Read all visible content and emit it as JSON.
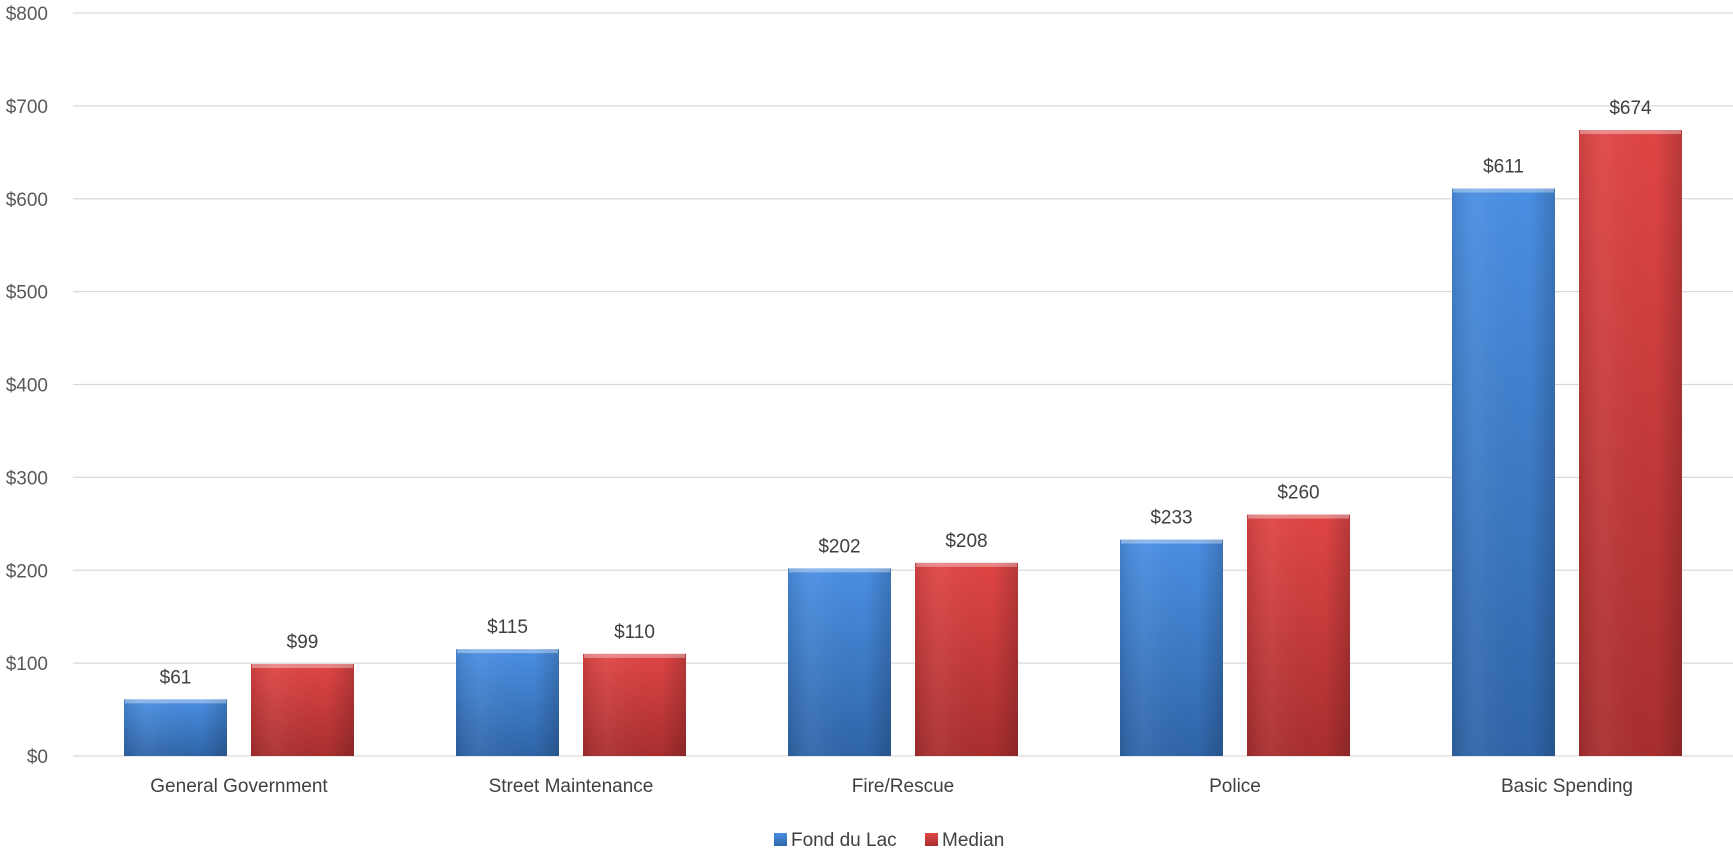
{
  "chart_data": {
    "type": "bar",
    "categories": [
      "General Government",
      "Street Maintenance",
      "Fire/Rescue",
      "Police",
      "Basic Spending"
    ],
    "series": [
      {
        "name": "Fond du Lac",
        "values": [
          61,
          115,
          202,
          233,
          611
        ],
        "labels": [
          "$61",
          "$115",
          "$202",
          "$233",
          "$611"
        ],
        "color": "#3a7fd5"
      },
      {
        "name": "Median",
        "values": [
          99,
          110,
          208,
          260,
          674
        ],
        "labels": [
          "$99",
          "$110",
          "$208",
          "$260",
          "$674"
        ],
        "color": "#d63c3c"
      }
    ],
    "ylim": [
      0,
      800
    ],
    "yticks": [
      0,
      100,
      200,
      300,
      400,
      500,
      600,
      700,
      800
    ],
    "ytick_labels": [
      "$0",
      "$100",
      "$200",
      "$300",
      "$400",
      "$500",
      "$600",
      "$700",
      "$800"
    ],
    "grid": true,
    "legend_position": "bottom"
  }
}
